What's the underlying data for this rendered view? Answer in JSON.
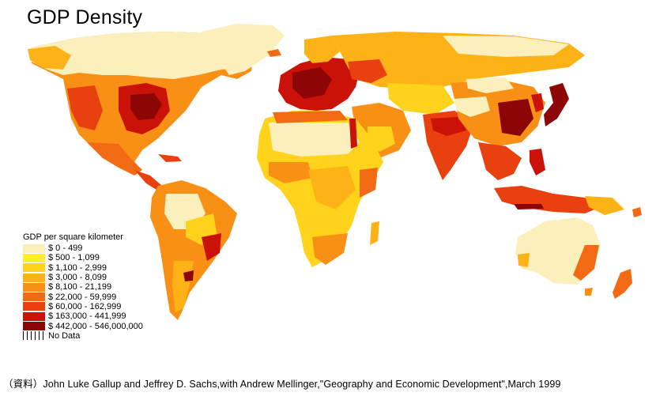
{
  "title": "GDP Density",
  "legend": {
    "title": "GDP per square kilometer",
    "items": [
      {
        "label": "$ 0 - 499",
        "color": "#fbf0bc"
      },
      {
        "label": "$ 500 - 1,099",
        "color": "#ffee2e"
      },
      {
        "label": "$ 1,100 - 2,999",
        "color": "#ffd21c"
      },
      {
        "label": "$ 3,000 - 8,099",
        "color": "#fdb317"
      },
      {
        "label": "$ 8,100 - 21,199",
        "color": "#f99016"
      },
      {
        "label": "$ 22,000 - 59,999",
        "color": "#f26a14"
      },
      {
        "label": "$ 60,000 - 162,999",
        "color": "#e8400f"
      },
      {
        "label": "$ 163,000 - 441,999",
        "color": "#cb1208"
      },
      {
        "label": "$ 442,000 - 546,000,000",
        "color": "#8e0505"
      }
    ],
    "no_data": "No Data"
  },
  "credit": "（資料）John Luke Gallup and Jeffrey D. Sachs,with Andrew Mellinger,\"Geography and Economic Development\",March 1999"
}
